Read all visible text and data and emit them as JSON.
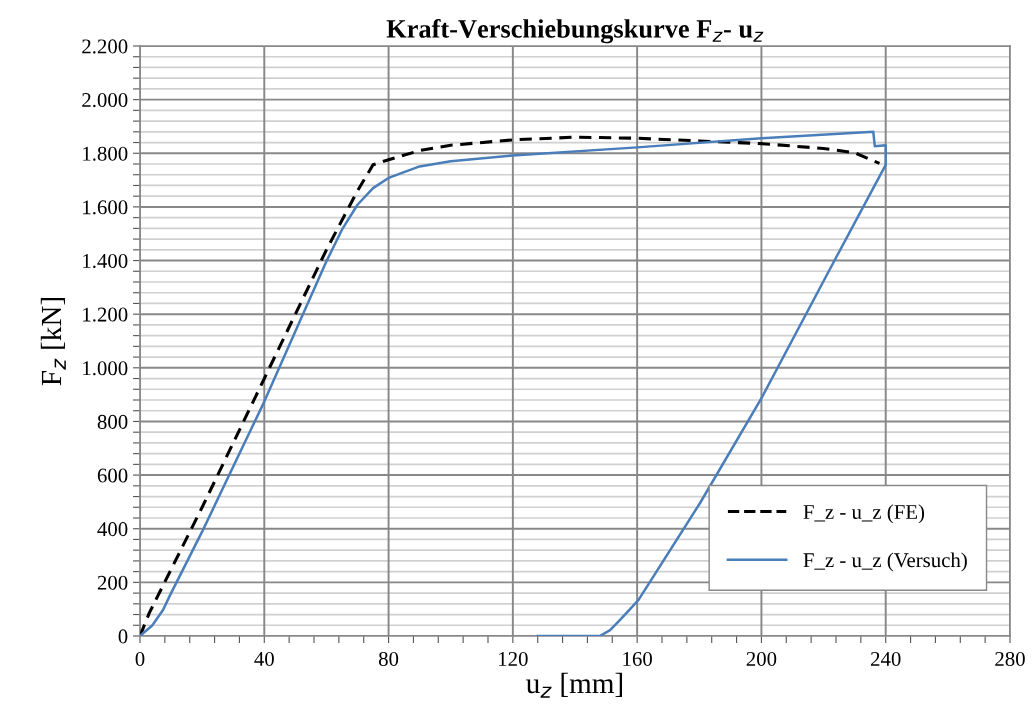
{
  "chart_data": {
    "type": "line",
    "title": "Kraft-Verschiebungskurve F$_{z}$- u$_{z}$",
    "xlabel": "u$_{z}$ [mm]",
    "ylabel": "F$_{z}$ [kN]",
    "xlim": [
      0,
      280
    ],
    "ylim": [
      0,
      2200
    ],
    "xticks": [
      0,
      {
        "value": 8,
        "label": null
      },
      {
        "value": 16,
        "label": null
      },
      {
        "value": 24,
        "label": null
      },
      {
        "value": 32,
        "label": null
      },
      40,
      {
        "value": 48,
        "label": null
      },
      {
        "value": 56,
        "label": null
      },
      {
        "value": 64,
        "label": null
      },
      {
        "value": 72,
        "label": null
      },
      80,
      {
        "value": 88,
        "label": null
      },
      {
        "value": 96,
        "label": null
      },
      {
        "value": 104,
        "label": null
      },
      {
        "value": 112,
        "label": null
      },
      120,
      {
        "value": 128,
        "label": null
      },
      {
        "value": 136,
        "label": null
      },
      {
        "value": 144,
        "label": null
      },
      {
        "value": 152,
        "label": null
      },
      160,
      {
        "value": 168,
        "label": null
      },
      {
        "value": 176,
        "label": null
      },
      {
        "value": 184,
        "label": null
      },
      {
        "value": 192,
        "label": null
      },
      200,
      {
        "value": 208,
        "label": null
      },
      {
        "value": 216,
        "label": null
      },
      {
        "value": 224,
        "label": null
      },
      {
        "value": 232,
        "label": null
      },
      240,
      {
        "value": 248,
        "label": null
      },
      {
        "value": 256,
        "label": null
      },
      {
        "value": 264,
        "label": null
      },
      {
        "value": 272,
        "label": null
      },
      280
    ],
    "yticks": [
      0,
      {
        "value": 40,
        "label": null
      },
      {
        "value": 80,
        "label": null
      },
      {
        "value": 120,
        "label": null
      },
      {
        "value": 160,
        "label": null
      },
      200,
      {
        "value": 240,
        "label": null
      },
      {
        "value": 280,
        "label": null
      },
      {
        "value": 320,
        "label": null
      },
      {
        "value": 360,
        "label": null
      },
      400,
      {
        "value": 440,
        "label": null
      },
      {
        "value": 480,
        "label": null
      },
      {
        "value": 520,
        "label": null
      },
      {
        "value": 560,
        "label": null
      },
      600,
      {
        "value": 640,
        "label": null
      },
      {
        "value": 680,
        "label": null
      },
      {
        "value": 720,
        "label": null
      },
      {
        "value": 760,
        "label": null
      },
      800,
      {
        "value": 840,
        "label": null
      },
      {
        "value": 880,
        "label": null
      },
      {
        "value": 920,
        "label": null
      },
      {
        "value": 960,
        "label": null
      },
      {
        "value": 1000,
        "label": "1.000"
      },
      {
        "value": 1040,
        "label": null
      },
      {
        "value": 1080,
        "label": null
      },
      {
        "value": 1120,
        "label": null
      },
      {
        "value": 1160,
        "label": null
      },
      {
        "value": 1200,
        "label": "1.200"
      },
      {
        "value": 1240,
        "label": null
      },
      {
        "value": 1280,
        "label": null
      },
      {
        "value": 1320,
        "label": null
      },
      {
        "value": 1360,
        "label": null
      },
      {
        "value": 1400,
        "label": "1.400"
      },
      {
        "value": 1440,
        "label": null
      },
      {
        "value": 1480,
        "label": null
      },
      {
        "value": 1520,
        "label": null
      },
      {
        "value": 1560,
        "label": null
      },
      {
        "value": 1600,
        "label": "1.600"
      },
      {
        "value": 1640,
        "label": null
      },
      {
        "value": 1680,
        "label": null
      },
      {
        "value": 1720,
        "label": null
      },
      {
        "value": 1760,
        "label": null
      },
      {
        "value": 1800,
        "label": "1.800"
      },
      {
        "value": 1840,
        "label": null
      },
      {
        "value": 1880,
        "label": null
      },
      {
        "value": 1920,
        "label": null
      },
      {
        "value": 1960,
        "label": null
      },
      {
        "value": 2000,
        "label": "2.000"
      },
      {
        "value": 2040,
        "label": null
      },
      {
        "value": 2080,
        "label": null
      },
      {
        "value": 2120,
        "label": null
      },
      {
        "value": 2160,
        "label": null
      },
      {
        "value": 2200,
        "label": "2.200"
      }
    ],
    "grid": true,
    "legend": "bottom right",
    "marker": "none",
    "series": [
      {
        "name": "F_z - u_z (FE)",
        "color": "#000000",
        "line_style": "dashed",
        "x": [
          0,
          3,
          20,
          40,
          60,
          70,
          75,
          80,
          90,
          100,
          120,
          140,
          160,
          180,
          200,
          220,
          230,
          238
        ],
        "values": [
          0,
          86,
          480,
          960,
          1440,
          1660,
          1757,
          1776,
          1810,
          1830,
          1850,
          1860,
          1856,
          1846,
          1836,
          1818,
          1802,
          1762
        ]
      },
      {
        "name": "F_z - u_z (Versuch)",
        "color": "#4a7ebb",
        "line_style": "solid",
        "x": [
          0,
          4,
          7.4,
          10,
          20,
          40,
          60,
          65,
          70,
          75,
          80,
          90,
          100,
          120,
          160,
          200,
          236,
          236.5,
          240,
          240,
          224.2,
          200.3,
          180.2,
          160.4,
          154.5,
          151.3,
          148,
          128
        ],
        "values": [
          0,
          40,
          97,
          160,
          389,
          874,
          1397,
          1515,
          1608,
          1670,
          1708,
          1751,
          1770,
          1792,
          1822,
          1856,
          1880,
          1826,
          1830,
          1757,
          1415,
          893,
          495,
          134,
          60,
          22,
          0,
          0
        ]
      }
    ]
  }
}
